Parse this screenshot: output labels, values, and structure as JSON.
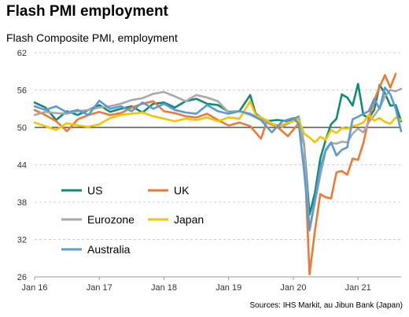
{
  "title": "Flash PMI employment",
  "source": "Sources: IHS Markit, au Jibun Bank (Japan)",
  "chart_data": {
    "type": "line",
    "title": "Flash Composite PMI, employment",
    "ylim": [
      26,
      62
    ],
    "yticks": [
      26,
      32,
      38,
      44,
      50,
      56,
      62
    ],
    "reference_line": 50,
    "grid": "horizontal dashed",
    "legend_placement": "lower-left",
    "xlim": [
      "2016-01",
      "2021-09"
    ],
    "xticks": [
      {
        "label": "Jan 16",
        "date": "2016-01"
      },
      {
        "label": "Jan 17",
        "date": "2017-01"
      },
      {
        "label": "Jan 18",
        "date": "2018-01"
      },
      {
        "label": "Jan 19",
        "date": "2019-01"
      },
      {
        "label": "Jan 20",
        "date": "2020-01"
      },
      {
        "label": "Jan 21",
        "date": "2021-01"
      }
    ],
    "series": [
      {
        "name": "US",
        "color": "#0f8a73",
        "points": [
          [
            "2016-01",
            54.0
          ],
          [
            "2016-03",
            53.2
          ],
          [
            "2016-05",
            51.2
          ],
          [
            "2016-07",
            52.6
          ],
          [
            "2016-09",
            52.0
          ],
          [
            "2016-11",
            52.8
          ],
          [
            "2017-01",
            53.6
          ],
          [
            "2017-03",
            52.5
          ],
          [
            "2017-05",
            53.0
          ],
          [
            "2017-07",
            53.4
          ],
          [
            "2017-09",
            52.4
          ],
          [
            "2017-11",
            53.8
          ],
          [
            "2018-01",
            54.0
          ],
          [
            "2018-03",
            53.2
          ],
          [
            "2018-05",
            54.2
          ],
          [
            "2018-07",
            54.6
          ],
          [
            "2018-09",
            53.8
          ],
          [
            "2018-11",
            53.6
          ],
          [
            "2019-01",
            52.5
          ],
          [
            "2019-03",
            52.6
          ],
          [
            "2019-05",
            55.2
          ],
          [
            "2019-06",
            52.2
          ],
          [
            "2019-08",
            51.0
          ],
          [
            "2019-10",
            51.2
          ],
          [
            "2019-12",
            51.0
          ],
          [
            "2020-02",
            51.7
          ],
          [
            "2020-03",
            47.3
          ],
          [
            "2020-04",
            36.0
          ],
          [
            "2020-05",
            39.5
          ],
          [
            "2020-06",
            45.0
          ],
          [
            "2020-07",
            48.0
          ],
          [
            "2020-08",
            50.5
          ],
          [
            "2020-09",
            51.4
          ],
          [
            "2020-10",
            55.3
          ],
          [
            "2020-11",
            54.8
          ],
          [
            "2020-12",
            53.5
          ],
          [
            "2021-01",
            57.0
          ],
          [
            "2021-02",
            52.0
          ],
          [
            "2021-03",
            51.5
          ],
          [
            "2021-04",
            52.8
          ],
          [
            "2021-05",
            56.8
          ],
          [
            "2021-06",
            55.5
          ],
          [
            "2021-07",
            53.5
          ],
          [
            "2021-08",
            53.6
          ],
          [
            "2021-09",
            51.0
          ]
        ]
      },
      {
        "name": "UK",
        "color": "#ec7a36",
        "points": [
          [
            "2016-01",
            52.8
          ],
          [
            "2016-03",
            52.0
          ],
          [
            "2016-05",
            51.0
          ],
          [
            "2016-07",
            49.4
          ],
          [
            "2016-09",
            51.3
          ],
          [
            "2016-11",
            52.0
          ],
          [
            "2017-01",
            52.5
          ],
          [
            "2017-03",
            52.0
          ],
          [
            "2017-05",
            52.3
          ],
          [
            "2017-07",
            53.2
          ],
          [
            "2017-09",
            53.8
          ],
          [
            "2017-11",
            54.2
          ],
          [
            "2018-01",
            52.6
          ],
          [
            "2018-03",
            52.3
          ],
          [
            "2018-05",
            51.8
          ],
          [
            "2018-07",
            51.6
          ],
          [
            "2018-09",
            52.2
          ],
          [
            "2018-11",
            51.2
          ],
          [
            "2019-01",
            50.3
          ],
          [
            "2019-03",
            50.8
          ],
          [
            "2019-05",
            50.2
          ],
          [
            "2019-07",
            48.2
          ],
          [
            "2019-08",
            50.8
          ],
          [
            "2019-10",
            50.1
          ],
          [
            "2019-12",
            48.6
          ],
          [
            "2020-02",
            50.7
          ],
          [
            "2020-03",
            47.0
          ],
          [
            "2020-04",
            26.4
          ],
          [
            "2020-05",
            33.4
          ],
          [
            "2020-06",
            39.3
          ],
          [
            "2020-07",
            38.8
          ],
          [
            "2020-08",
            38.6
          ],
          [
            "2020-09",
            42.8
          ],
          [
            "2020-10",
            43.0
          ],
          [
            "2020-11",
            42.4
          ],
          [
            "2020-12",
            45.0
          ],
          [
            "2021-01",
            44.8
          ],
          [
            "2021-02",
            47.5
          ],
          [
            "2021-03",
            51.4
          ],
          [
            "2021-04",
            54.3
          ],
          [
            "2021-05",
            56.5
          ],
          [
            "2021-06",
            58.4
          ],
          [
            "2021-07",
            56.4
          ],
          [
            "2021-08",
            58.6
          ]
        ]
      },
      {
        "name": "Eurozone",
        "color": "#a8a8a8",
        "points": [
          [
            "2016-01",
            52.0
          ],
          [
            "2016-03",
            52.5
          ],
          [
            "2016-05",
            52.3
          ],
          [
            "2016-07",
            52.2
          ],
          [
            "2016-09",
            52.6
          ],
          [
            "2016-11",
            52.8
          ],
          [
            "2017-01",
            53.2
          ],
          [
            "2017-03",
            53.4
          ],
          [
            "2017-05",
            53.8
          ],
          [
            "2017-07",
            54.4
          ],
          [
            "2017-09",
            54.7
          ],
          [
            "2017-11",
            55.4
          ],
          [
            "2018-01",
            55.7
          ],
          [
            "2018-03",
            55.0
          ],
          [
            "2018-05",
            54.2
          ],
          [
            "2018-07",
            55.2
          ],
          [
            "2018-09",
            54.8
          ],
          [
            "2018-11",
            54.2
          ],
          [
            "2019-01",
            52.4
          ],
          [
            "2019-03",
            52.6
          ],
          [
            "2019-05",
            52.0
          ],
          [
            "2019-07",
            51.2
          ],
          [
            "2019-09",
            50.6
          ],
          [
            "2019-11",
            50.1
          ],
          [
            "2020-01",
            51.1
          ],
          [
            "2020-02",
            51.6
          ],
          [
            "2020-03",
            47.0
          ],
          [
            "2020-04",
            33.4
          ],
          [
            "2020-05",
            38.0
          ],
          [
            "2020-06",
            42.3
          ],
          [
            "2020-07",
            46.2
          ],
          [
            "2020-08",
            47.5
          ],
          [
            "2020-09",
            47.4
          ],
          [
            "2020-10",
            47.7
          ],
          [
            "2020-11",
            47.6
          ],
          [
            "2020-12",
            49.0
          ],
          [
            "2021-01",
            49.8
          ],
          [
            "2021-02",
            49.2
          ],
          [
            "2021-03",
            50.9
          ],
          [
            "2021-04",
            51.9
          ],
          [
            "2021-05",
            53.1
          ],
          [
            "2021-06",
            55.0
          ],
          [
            "2021-07",
            56.0
          ],
          [
            "2021-08",
            55.8
          ],
          [
            "2021-09",
            56.2
          ]
        ]
      },
      {
        "name": "Japan",
        "color": "#f5c400",
        "points": [
          [
            "2016-01",
            50.8
          ],
          [
            "2016-03",
            50.2
          ],
          [
            "2016-05",
            49.6
          ],
          [
            "2016-07",
            50.7
          ],
          [
            "2016-09",
            50.3
          ],
          [
            "2016-11",
            50.1
          ],
          [
            "2017-01",
            50.5
          ],
          [
            "2017-03",
            51.5
          ],
          [
            "2017-05",
            52.0
          ],
          [
            "2017-07",
            52.2
          ],
          [
            "2017-09",
            52.4
          ],
          [
            "2017-11",
            51.8
          ],
          [
            "2018-01",
            51.4
          ],
          [
            "2018-03",
            51.0
          ],
          [
            "2018-05",
            51.4
          ],
          [
            "2018-07",
            51.2
          ],
          [
            "2018-09",
            51.6
          ],
          [
            "2018-11",
            51.0
          ],
          [
            "2019-01",
            51.6
          ],
          [
            "2019-03",
            51.4
          ],
          [
            "2019-05",
            54.2
          ],
          [
            "2019-06",
            52.0
          ],
          [
            "2019-08",
            51.2
          ],
          [
            "2019-10",
            50.1
          ],
          [
            "2019-12",
            50.8
          ],
          [
            "2020-02",
            51.2
          ],
          [
            "2020-03",
            49.0
          ],
          [
            "2020-04",
            48.4
          ],
          [
            "2020-05",
            47.6
          ],
          [
            "2020-06",
            48.5
          ],
          [
            "2020-07",
            48.0
          ],
          [
            "2020-08",
            49.6
          ],
          [
            "2020-09",
            49.1
          ],
          [
            "2020-10",
            49.9
          ],
          [
            "2020-11",
            49.8
          ],
          [
            "2020-12",
            50.2
          ],
          [
            "2021-01",
            50.4
          ],
          [
            "2021-02",
            50.8
          ],
          [
            "2021-03",
            52.0
          ],
          [
            "2021-04",
            51.1
          ],
          [
            "2021-05",
            51.5
          ],
          [
            "2021-06",
            50.9
          ],
          [
            "2021-07",
            50.6
          ],
          [
            "2021-08",
            51.6
          ],
          [
            "2021-09",
            51.2
          ]
        ]
      },
      {
        "name": "Australia",
        "color": "#5b9bd5",
        "points": [
          [
            "2016-01",
            53.4
          ],
          [
            "2016-03",
            52.8
          ],
          [
            "2016-05",
            53.4
          ],
          [
            "2016-07",
            52.4
          ],
          [
            "2016-09",
            52.8
          ],
          [
            "2016-11",
            52.0
          ],
          [
            "2017-01",
            54.3
          ],
          [
            "2017-03",
            53.0
          ],
          [
            "2017-05",
            53.4
          ],
          [
            "2017-07",
            52.6
          ],
          [
            "2017-09",
            54.0
          ],
          [
            "2017-11",
            53.0
          ],
          [
            "2018-01",
            53.8
          ],
          [
            "2018-03",
            52.8
          ],
          [
            "2018-05",
            52.4
          ],
          [
            "2018-07",
            52.2
          ],
          [
            "2018-09",
            53.6
          ],
          [
            "2018-11",
            52.6
          ],
          [
            "2019-01",
            52.2
          ],
          [
            "2019-03",
            52.6
          ],
          [
            "2019-05",
            52.2
          ],
          [
            "2019-07",
            51.2
          ],
          [
            "2019-09",
            49.2
          ],
          [
            "2019-11",
            51.0
          ],
          [
            "2020-01",
            51.5
          ],
          [
            "2020-02",
            50.6
          ],
          [
            "2020-03",
            43.0
          ],
          [
            "2020-04",
            33.6
          ],
          [
            "2020-05",
            38.4
          ],
          [
            "2020-06",
            43.5
          ],
          [
            "2020-07",
            46.4
          ],
          [
            "2020-08",
            47.6
          ],
          [
            "2020-09",
            45.5
          ],
          [
            "2020-10",
            46.4
          ],
          [
            "2020-11",
            46.8
          ],
          [
            "2020-12",
            51.3
          ],
          [
            "2021-01",
            51.7
          ],
          [
            "2021-02",
            52.2
          ],
          [
            "2021-03",
            52.6
          ],
          [
            "2021-04",
            54.6
          ],
          [
            "2021-05",
            53.0
          ],
          [
            "2021-06",
            56.4
          ],
          [
            "2021-07",
            55.3
          ],
          [
            "2021-08",
            53.0
          ],
          [
            "2021-09",
            49.4
          ]
        ]
      }
    ]
  }
}
